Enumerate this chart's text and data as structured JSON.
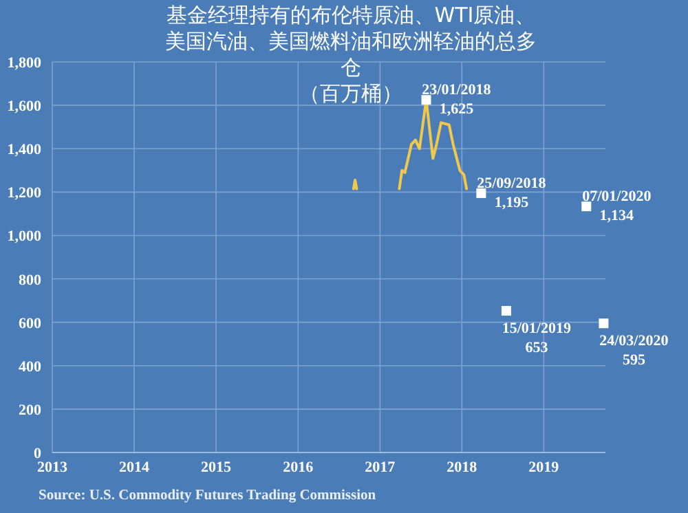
{
  "chart_data": {
    "type": "line",
    "title": "基金经理持有的布伦特原油、WTI原油、美国汽油、美国燃料油和欧洲轻油的总多仓",
    "subtitle": "（百万桶）",
    "x": [
      "2017-03-05",
      "2017-03-12",
      "2017-03-19",
      "2017-05-01",
      "2017-09-25",
      "2017-10-07",
      "2017-10-20",
      "2017-11-18",
      "2017-12-06",
      "2017-12-24",
      "2018-01-23",
      "2018-02-22",
      "2018-03-10",
      "2018-03-30",
      "2018-05-05",
      "2018-05-23",
      "2018-06-22",
      "2018-07-10",
      "2018-07-22"
    ],
    "series": [
      {
        "color": "#f2c84b",
        "values": [
          1215,
          1255,
          1215,
          null,
          1215,
          1300,
          1290,
          1420,
          1440,
          1400,
          1625,
          1355,
          1420,
          1520,
          1510,
          1420,
          1300,
          1280,
          1215
        ]
      }
    ],
    "annotations": [
      {
        "text": "23/01/2018 1,625",
        "x": "2018-01-23",
        "y": 1625
      },
      {
        "text": "25/09/2018 1,195",
        "x": "2018-09-25",
        "y": 1195
      },
      {
        "text": "07/01/2020 1,134",
        "x": "2020-01-07",
        "y": 1134
      },
      {
        "text": "15/01/2019 653",
        "x": "2019-01-15",
        "y": 653
      },
      {
        "text": "24/03/2020 595",
        "x": "2020-03-24",
        "y": 595
      },
      "Source: U.S. Commodity Futures Trading Commission"
    ],
    "xlim": [
      "2013-07-01",
      "2020-04-01"
    ],
    "xticks": [
      {
        "value": "2013-07-01",
        "label": "2013"
      },
      {
        "value": "2014-07-01",
        "label": "2014"
      },
      {
        "value": "2015-07-01",
        "label": "2015"
      },
      {
        "value": "2016-07-01",
        "label": "2016"
      },
      {
        "value": "2017-07-01",
        "label": "2017"
      },
      {
        "value": "2018-07-01",
        "label": "2018"
      },
      {
        "value": "2019-07-01",
        "label": "2019"
      }
    ],
    "ylim": [
      0,
      1800
    ],
    "yticks": [
      0,
      200,
      400,
      {
        "value": 600,
        "label": "600"
      },
      {
        "value": 800,
        "label": "800"
      },
      {
        "value": 1000,
        "label": "1,000"
      },
      {
        "value": 1200,
        "label": "1,200"
      },
      {
        "value": 1400,
        "label": "1,400"
      },
      {
        "value": 1600,
        "label": "1,600"
      },
      {
        "value": 1800,
        "label": "1,800"
      }
    ],
    "grid": true,
    "line_style": "solid",
    "marker": "none"
  }
}
